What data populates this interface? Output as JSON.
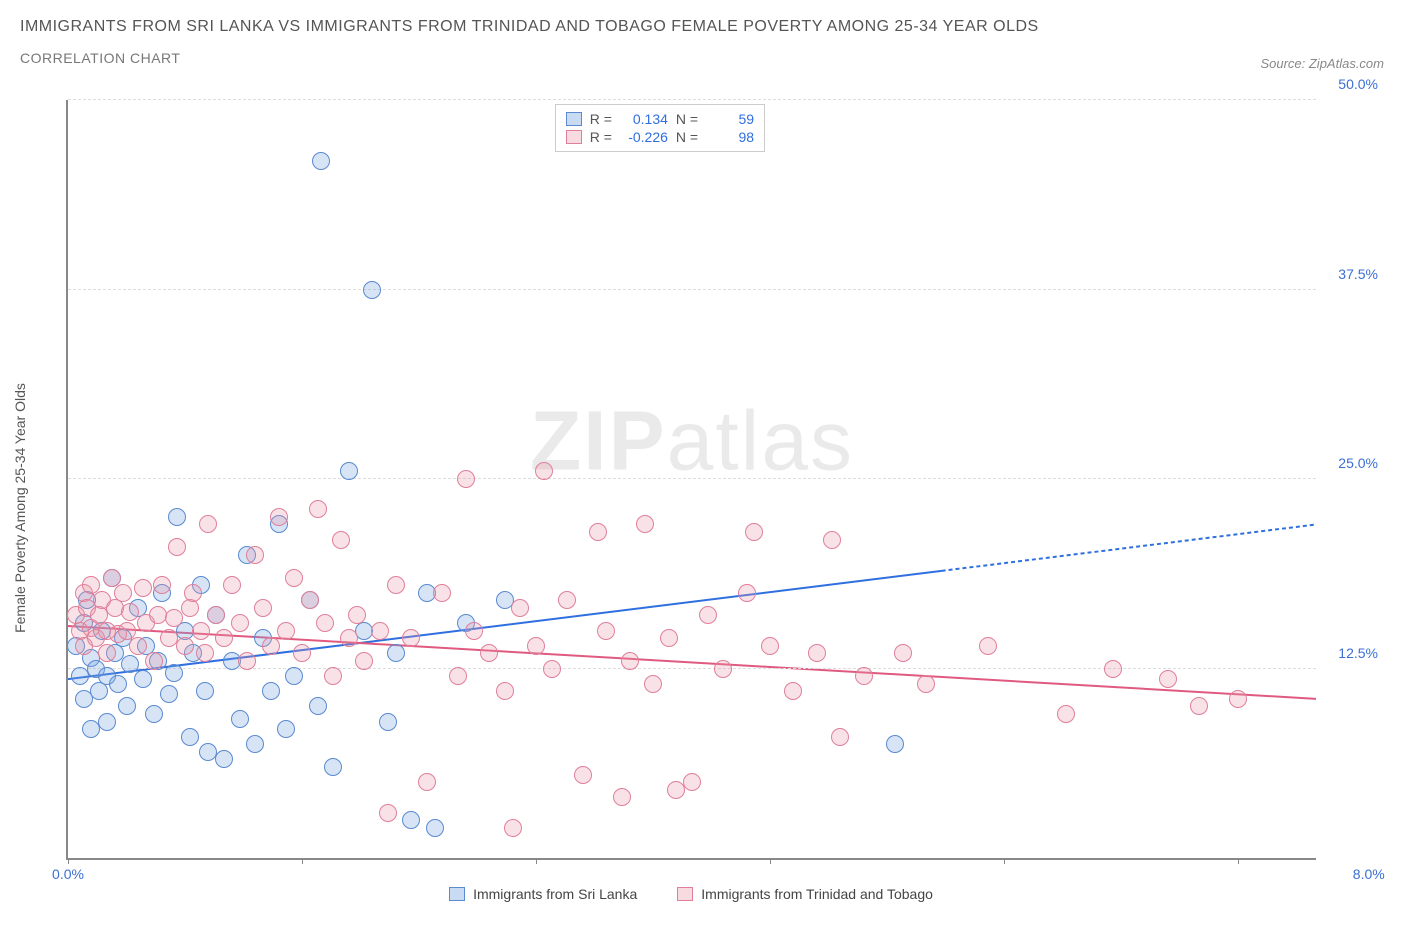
{
  "title": "IMMIGRANTS FROM SRI LANKA VS IMMIGRANTS FROM TRINIDAD AND TOBAGO FEMALE POVERTY AMONG 25-34 YEAR OLDS",
  "subtitle": "CORRELATION CHART",
  "source_label": "Source: ",
  "source_name": "ZipAtlas.com",
  "y_axis_title": "Female Poverty Among 25-34 Year Olds",
  "watermark_bold": "ZIP",
  "watermark_rest": "atlas",
  "chart": {
    "type": "scatter",
    "background_color": "#ffffff",
    "grid_color": "#dddddd",
    "axis_color": "#888888",
    "xlim": [
      0.0,
      8.0
    ],
    "ylim": [
      0.0,
      50.0
    ],
    "y_ticks": [
      12.5,
      25.0,
      37.5,
      50.0
    ],
    "y_tick_labels": [
      "12.5%",
      "25.0%",
      "37.5%",
      "50.0%"
    ],
    "x_ticks": [
      0,
      1.5,
      3.0,
      4.5,
      6.0,
      7.5
    ],
    "x_start_label": "0.0%",
    "x_end_label": "8.0%",
    "marker_radius": 9,
    "series": [
      {
        "id": "sri_lanka",
        "label": "Immigrants from Sri Lanka",
        "color_fill": "#78a5e1",
        "color_stroke": "#5a8ad0",
        "fill_opacity": 0.3,
        "R": "0.134",
        "N": "59",
        "trend": {
          "x1": 0.0,
          "y1": 11.8,
          "x2": 8.0,
          "y2": 22.0,
          "solid_until_x": 5.6,
          "color": "#2f6fe0",
          "width": 2
        },
        "points": [
          [
            0.05,
            14.0
          ],
          [
            0.08,
            12.0
          ],
          [
            0.1,
            15.5
          ],
          [
            0.1,
            10.5
          ],
          [
            0.12,
            17.0
          ],
          [
            0.15,
            13.2
          ],
          [
            0.15,
            8.5
          ],
          [
            0.18,
            12.5
          ],
          [
            0.2,
            11.0
          ],
          [
            0.22,
            15.0
          ],
          [
            0.25,
            12.0
          ],
          [
            0.25,
            9.0
          ],
          [
            0.28,
            18.5
          ],
          [
            0.3,
            13.5
          ],
          [
            0.32,
            11.5
          ],
          [
            0.35,
            14.5
          ],
          [
            0.38,
            10.0
          ],
          [
            0.4,
            12.8
          ],
          [
            0.45,
            16.5
          ],
          [
            0.48,
            11.8
          ],
          [
            0.5,
            14.0
          ],
          [
            0.55,
            9.5
          ],
          [
            0.58,
            13.0
          ],
          [
            0.6,
            17.5
          ],
          [
            0.65,
            10.8
          ],
          [
            0.68,
            12.2
          ],
          [
            0.7,
            22.5
          ],
          [
            0.75,
            15.0
          ],
          [
            0.78,
            8.0
          ],
          [
            0.8,
            13.5
          ],
          [
            0.85,
            18.0
          ],
          [
            0.88,
            11.0
          ],
          [
            0.9,
            7.0
          ],
          [
            0.95,
            16.0
          ],
          [
            1.0,
            6.5
          ],
          [
            1.05,
            13.0
          ],
          [
            1.1,
            9.2
          ],
          [
            1.15,
            20.0
          ],
          [
            1.2,
            7.5
          ],
          [
            1.25,
            14.5
          ],
          [
            1.3,
            11.0
          ],
          [
            1.35,
            22.0
          ],
          [
            1.4,
            8.5
          ],
          [
            1.45,
            12.0
          ],
          [
            1.55,
            17.0
          ],
          [
            1.6,
            10.0
          ],
          [
            1.62,
            46.0
          ],
          [
            1.7,
            6.0
          ],
          [
            1.8,
            25.5
          ],
          [
            1.9,
            15.0
          ],
          [
            1.95,
            37.5
          ],
          [
            2.05,
            9.0
          ],
          [
            2.1,
            13.5
          ],
          [
            2.2,
            2.5
          ],
          [
            2.3,
            17.5
          ],
          [
            2.35,
            2.0
          ],
          [
            2.55,
            15.5
          ],
          [
            2.8,
            17.0
          ],
          [
            5.3,
            7.5
          ]
        ]
      },
      {
        "id": "trinidad",
        "label": "Immigrants from Trinidad and Tobago",
        "color_fill": "#eb96aa",
        "color_stroke": "#e07f9a",
        "fill_opacity": 0.28,
        "R": "-0.226",
        "N": "98",
        "trend": {
          "x1": 0.0,
          "y1": 15.3,
          "x2": 8.0,
          "y2": 10.5,
          "solid_until_x": 8.0,
          "color": "#e05a80",
          "width": 2
        },
        "points": [
          [
            0.05,
            16.0
          ],
          [
            0.08,
            15.0
          ],
          [
            0.1,
            17.5
          ],
          [
            0.1,
            14.0
          ],
          [
            0.12,
            16.5
          ],
          [
            0.15,
            15.2
          ],
          [
            0.15,
            18.0
          ],
          [
            0.18,
            14.5
          ],
          [
            0.2,
            16.0
          ],
          [
            0.22,
            17.0
          ],
          [
            0.25,
            15.0
          ],
          [
            0.25,
            13.5
          ],
          [
            0.28,
            18.5
          ],
          [
            0.3,
            16.5
          ],
          [
            0.32,
            14.8
          ],
          [
            0.35,
            17.5
          ],
          [
            0.38,
            15.0
          ],
          [
            0.4,
            16.2
          ],
          [
            0.45,
            14.0
          ],
          [
            0.48,
            17.8
          ],
          [
            0.5,
            15.5
          ],
          [
            0.55,
            13.0
          ],
          [
            0.58,
            16.0
          ],
          [
            0.6,
            18.0
          ],
          [
            0.65,
            14.5
          ],
          [
            0.68,
            15.8
          ],
          [
            0.7,
            20.5
          ],
          [
            0.75,
            14.0
          ],
          [
            0.78,
            16.5
          ],
          [
            0.8,
            17.5
          ],
          [
            0.85,
            15.0
          ],
          [
            0.88,
            13.5
          ],
          [
            0.9,
            22.0
          ],
          [
            0.95,
            16.0
          ],
          [
            1.0,
            14.5
          ],
          [
            1.05,
            18.0
          ],
          [
            1.1,
            15.5
          ],
          [
            1.15,
            13.0
          ],
          [
            1.2,
            20.0
          ],
          [
            1.25,
            16.5
          ],
          [
            1.3,
            14.0
          ],
          [
            1.35,
            22.5
          ],
          [
            1.4,
            15.0
          ],
          [
            1.45,
            18.5
          ],
          [
            1.5,
            13.5
          ],
          [
            1.55,
            17.0
          ],
          [
            1.6,
            23.0
          ],
          [
            1.65,
            15.5
          ],
          [
            1.7,
            12.0
          ],
          [
            1.75,
            21.0
          ],
          [
            1.8,
            14.5
          ],
          [
            1.85,
            16.0
          ],
          [
            1.9,
            13.0
          ],
          [
            2.0,
            15.0
          ],
          [
            2.05,
            3.0
          ],
          [
            2.1,
            18.0
          ],
          [
            2.2,
            14.5
          ],
          [
            2.3,
            5.0
          ],
          [
            2.4,
            17.5
          ],
          [
            2.5,
            12.0
          ],
          [
            2.55,
            25.0
          ],
          [
            2.6,
            15.0
          ],
          [
            2.7,
            13.5
          ],
          [
            2.8,
            11.0
          ],
          [
            2.85,
            2.0
          ],
          [
            2.9,
            16.5
          ],
          [
            3.0,
            14.0
          ],
          [
            3.05,
            25.5
          ],
          [
            3.1,
            12.5
          ],
          [
            3.2,
            17.0
          ],
          [
            3.3,
            5.5
          ],
          [
            3.4,
            21.5
          ],
          [
            3.45,
            15.0
          ],
          [
            3.55,
            4.0
          ],
          [
            3.6,
            13.0
          ],
          [
            3.7,
            22.0
          ],
          [
            3.75,
            11.5
          ],
          [
            3.85,
            14.5
          ],
          [
            3.9,
            4.5
          ],
          [
            4.0,
            5.0
          ],
          [
            4.1,
            16.0
          ],
          [
            4.2,
            12.5
          ],
          [
            4.35,
            17.5
          ],
          [
            4.4,
            21.5
          ],
          [
            4.5,
            14.0
          ],
          [
            4.65,
            11.0
          ],
          [
            4.8,
            13.5
          ],
          [
            4.9,
            21.0
          ],
          [
            4.95,
            8.0
          ],
          [
            5.1,
            12.0
          ],
          [
            5.35,
            13.5
          ],
          [
            5.5,
            11.5
          ],
          [
            5.9,
            14.0
          ],
          [
            6.4,
            9.5
          ],
          [
            6.7,
            12.5
          ],
          [
            7.05,
            11.8
          ],
          [
            7.25,
            10.0
          ],
          [
            7.5,
            10.5
          ]
        ]
      }
    ],
    "legend_stats_labels": {
      "R": "R =",
      "N": "N ="
    }
  }
}
